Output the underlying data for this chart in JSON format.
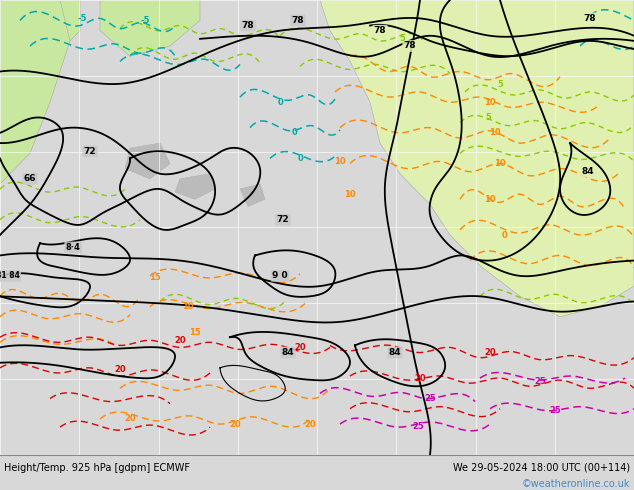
{
  "title_left": "Height/Temp. 925 hPa [gdpm] ECMWF",
  "title_right": "We 29-05-2024 18:00 UTC (00+114)",
  "credit": "©weatheronline.co.uk",
  "ocean_color": "#c8c8c8",
  "land_color": "#c8e8a0",
  "land_color2": "#e0f0b0",
  "bottom_bar_color": "#d8d8d8",
  "figsize": [
    6.34,
    4.9
  ],
  "dpi": 100,
  "title_fontsize": 7.0,
  "credit_fontsize": 7.0,
  "credit_color": "#4488cc",
  "grid_color": "#bbbbbb",
  "black": "#000000",
  "orange": "#ff8800",
  "red": "#dd0000",
  "magenta": "#cc00aa",
  "cyan": "#00aaaa",
  "green_light": "#88cc00",
  "green_dark": "#00aa44",
  "gray_land": "#aaaaaa"
}
